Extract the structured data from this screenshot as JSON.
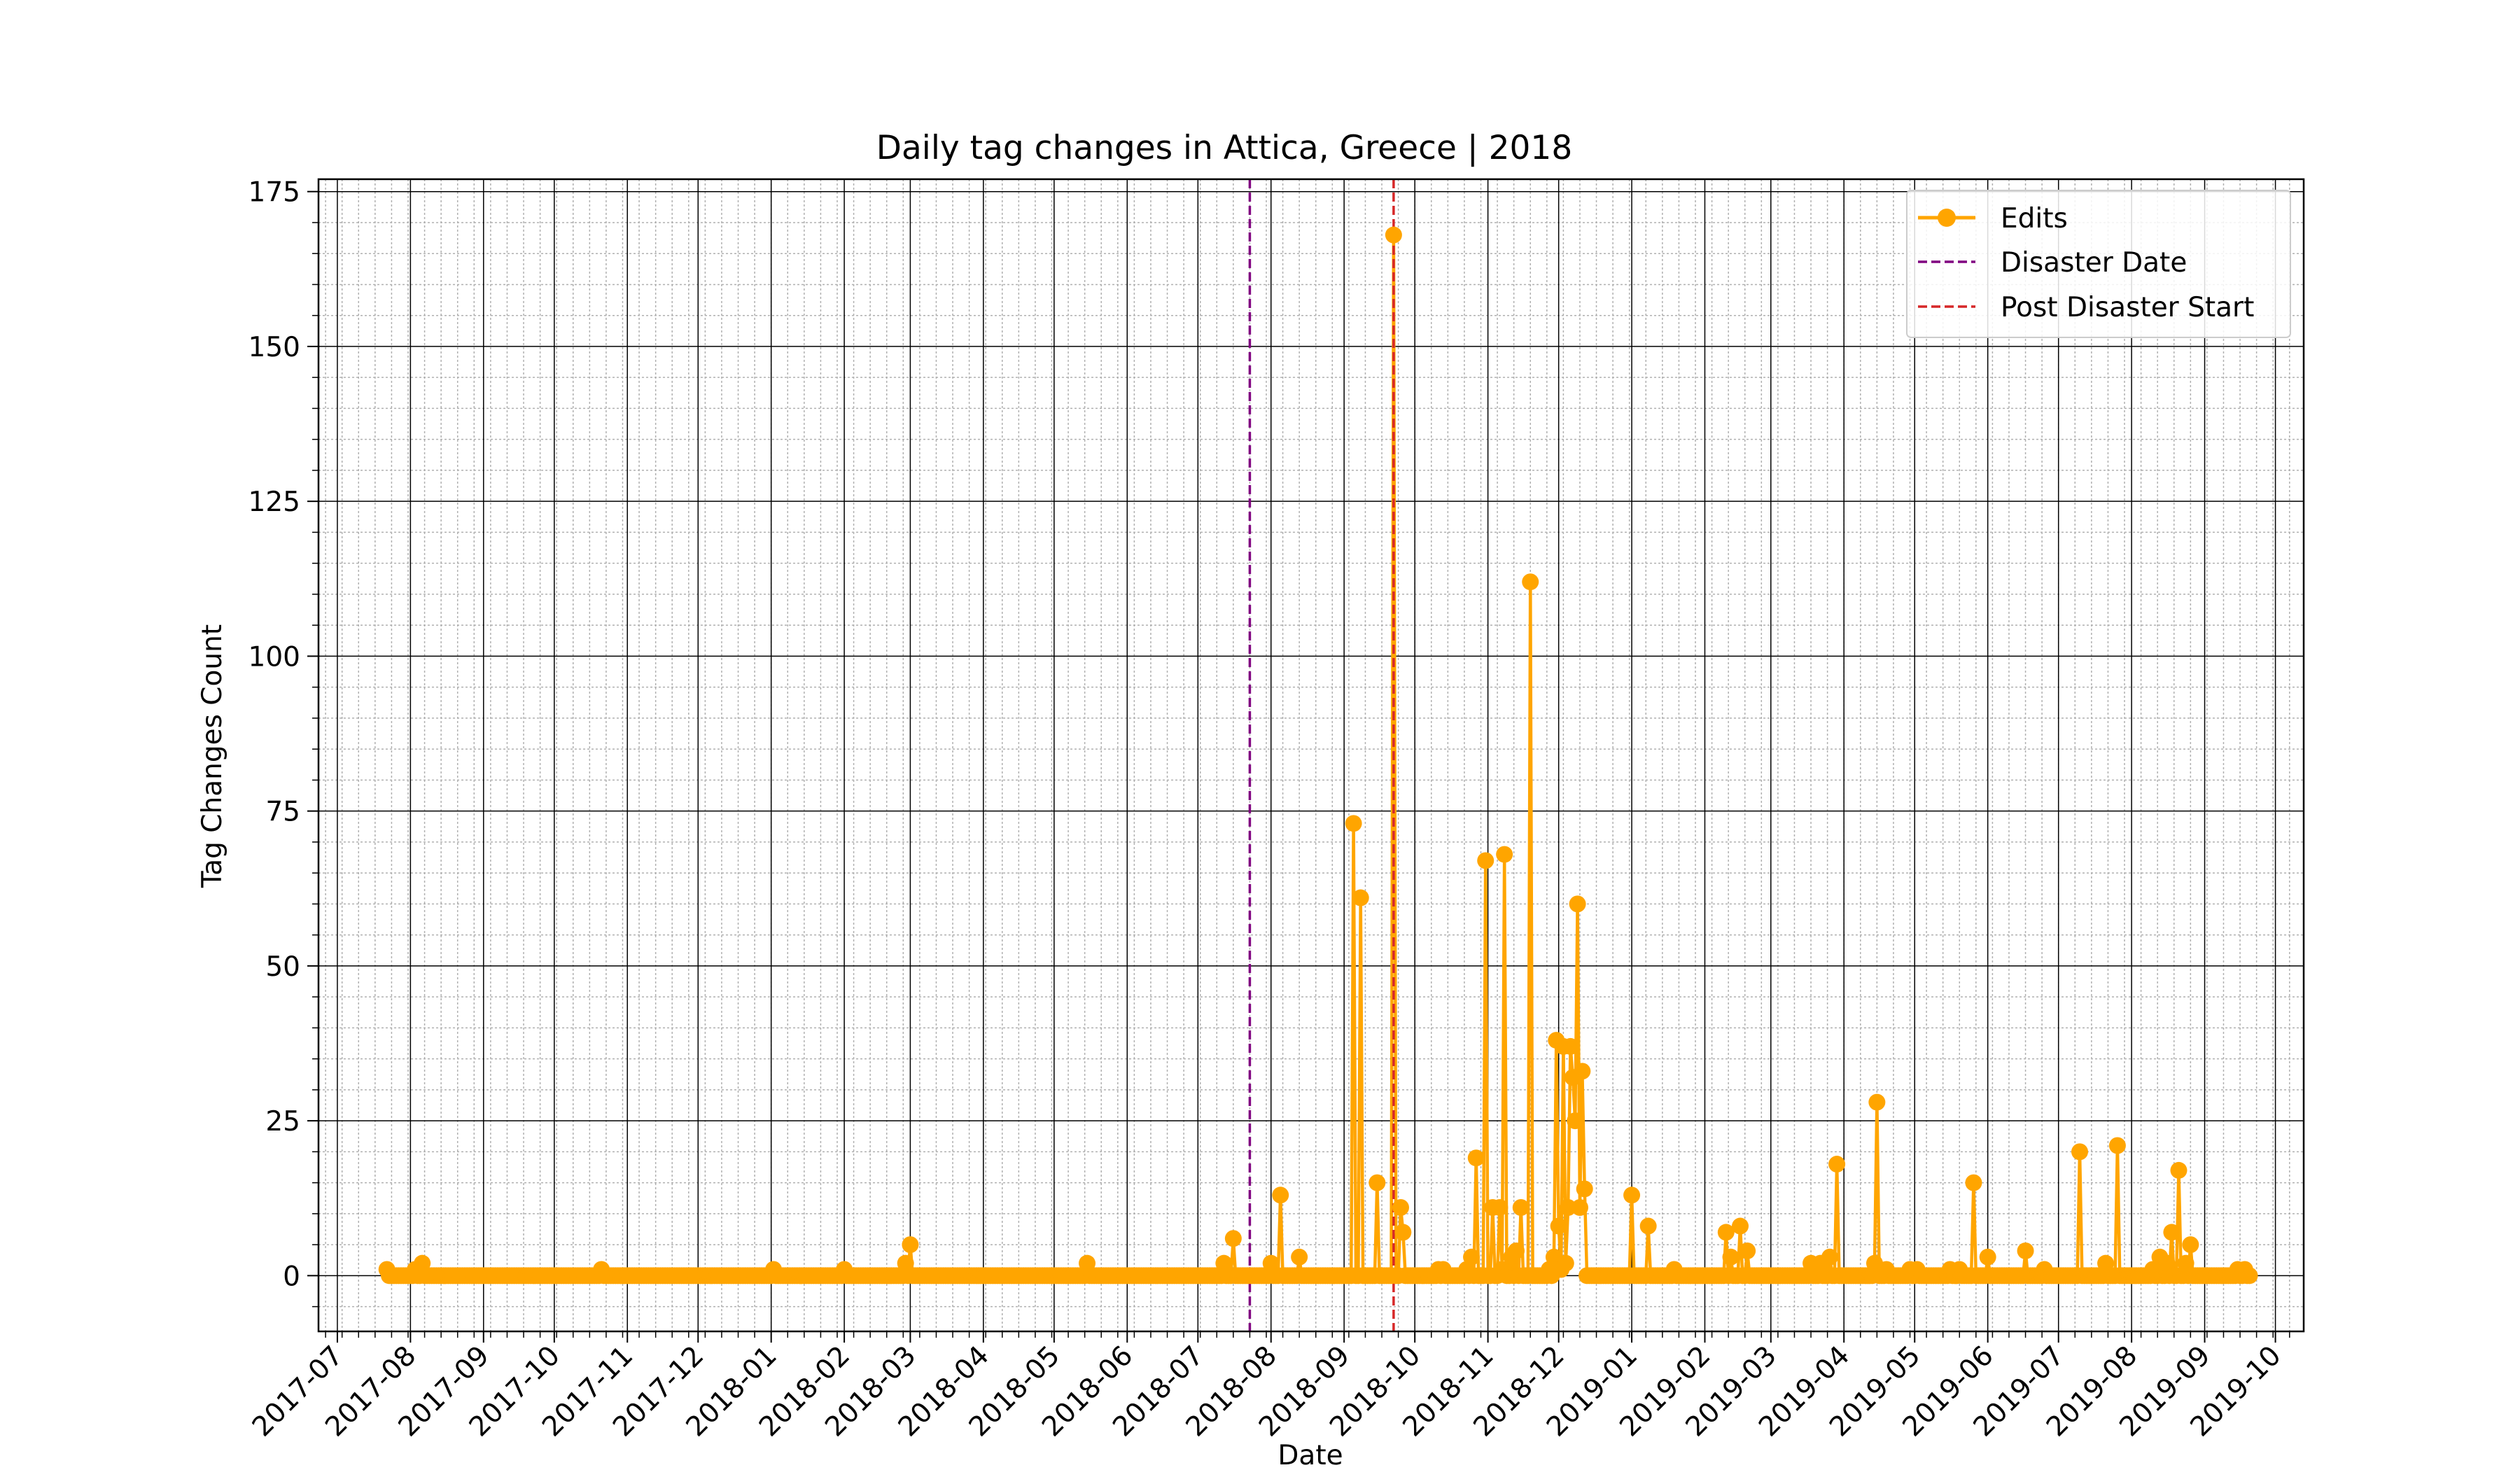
{
  "chart_data": {
    "type": "line",
    "title": "Daily tag changes in Attica, Greece | 2018",
    "xlabel": "Date",
    "ylabel": "Tag Changes Count",
    "xlim": [
      "2017-06-23",
      "2019-10-13"
    ],
    "ylim": [
      -9,
      177
    ],
    "grid": "major and minor",
    "legend_position": "top-right",
    "x_ticks": [
      "2017-07",
      "2017-08",
      "2017-09",
      "2017-10",
      "2017-11",
      "2017-12",
      "2018-01",
      "2018-02",
      "2018-03",
      "2018-04",
      "2018-05",
      "2018-06",
      "2018-07",
      "2018-08",
      "2018-09",
      "2018-10",
      "2018-11",
      "2018-12",
      "2019-01",
      "2019-02",
      "2019-03",
      "2019-04",
      "2019-05",
      "2019-06",
      "2019-07",
      "2019-08",
      "2019-09",
      "2019-10"
    ],
    "y_ticks": [
      0,
      25,
      50,
      75,
      100,
      125,
      150,
      175
    ],
    "series": [
      {
        "name": "Edits",
        "color": "#ffa500",
        "marker": "circle",
        "range": [
          "2017-07-22",
          "2019-09-20"
        ],
        "baseline": 0,
        "points": [
          [
            "2017-07-22",
            1
          ],
          [
            "2017-08-03",
            1
          ],
          [
            "2017-08-06",
            2
          ],
          [
            "2017-10-21",
            1
          ],
          [
            "2018-01-02",
            1
          ],
          [
            "2018-02-01",
            1
          ],
          [
            "2018-02-27",
            2
          ],
          [
            "2018-03-01",
            5
          ],
          [
            "2018-05-15",
            2
          ],
          [
            "2018-07-12",
            2
          ],
          [
            "2018-07-16",
            6
          ],
          [
            "2018-08-01",
            2
          ],
          [
            "2018-08-05",
            13
          ],
          [
            "2018-08-13",
            3
          ],
          [
            "2018-09-05",
            73
          ],
          [
            "2018-09-08",
            61
          ],
          [
            "2018-09-15",
            15
          ],
          [
            "2018-09-22",
            168
          ],
          [
            "2018-09-25",
            11
          ],
          [
            "2018-09-26",
            7
          ],
          [
            "2018-10-11",
            1
          ],
          [
            "2018-10-13",
            1
          ],
          [
            "2018-10-23",
            1
          ],
          [
            "2018-10-25",
            3
          ],
          [
            "2018-10-27",
            19
          ],
          [
            "2018-10-31",
            67
          ],
          [
            "2018-11-03",
            11
          ],
          [
            "2018-11-06",
            11
          ],
          [
            "2018-11-07",
            1
          ],
          [
            "2018-11-08",
            68
          ],
          [
            "2018-11-11",
            3
          ],
          [
            "2018-11-13",
            4
          ],
          [
            "2018-11-15",
            11
          ],
          [
            "2018-11-19",
            112
          ],
          [
            "2018-11-27",
            1
          ],
          [
            "2018-11-29",
            3
          ],
          [
            "2018-11-30",
            38
          ],
          [
            "2018-12-01",
            8
          ],
          [
            "2018-12-02",
            1
          ],
          [
            "2018-12-03",
            37
          ],
          [
            "2018-12-04",
            2
          ],
          [
            "2018-12-05",
            11
          ],
          [
            "2018-12-06",
            37
          ],
          [
            "2018-12-07",
            32
          ],
          [
            "2018-12-08",
            25
          ],
          [
            "2018-12-09",
            60
          ],
          [
            "2018-12-10",
            11
          ],
          [
            "2018-12-11",
            33
          ],
          [
            "2018-12-12",
            14
          ],
          [
            "2019-01-01",
            13
          ],
          [
            "2019-01-08",
            8
          ],
          [
            "2019-01-19",
            1
          ],
          [
            "2019-02-10",
            7
          ],
          [
            "2019-02-12",
            3
          ],
          [
            "2019-02-16",
            8
          ],
          [
            "2019-02-19",
            4
          ],
          [
            "2019-03-18",
            2
          ],
          [
            "2019-03-22",
            2
          ],
          [
            "2019-03-26",
            3
          ],
          [
            "2019-03-29",
            18
          ],
          [
            "2019-04-14",
            2
          ],
          [
            "2019-04-15",
            28
          ],
          [
            "2019-04-19",
            1
          ],
          [
            "2019-04-29",
            1
          ],
          [
            "2019-05-02",
            1
          ],
          [
            "2019-05-16",
            1
          ],
          [
            "2019-05-20",
            1
          ],
          [
            "2019-05-26",
            15
          ],
          [
            "2019-06-01",
            3
          ],
          [
            "2019-06-17",
            4
          ],
          [
            "2019-06-25",
            1
          ],
          [
            "2019-07-10",
            20
          ],
          [
            "2019-07-21",
            2
          ],
          [
            "2019-07-26",
            21
          ],
          [
            "2019-08-10",
            1
          ],
          [
            "2019-08-13",
            3
          ],
          [
            "2019-08-16",
            2
          ],
          [
            "2019-08-18",
            7
          ],
          [
            "2019-08-21",
            17
          ],
          [
            "2019-08-24",
            2
          ],
          [
            "2019-08-26",
            5
          ],
          [
            "2019-09-15",
            1
          ],
          [
            "2019-09-18",
            1
          ]
        ]
      },
      {
        "name": "Disaster Date",
        "color": "#800080",
        "linestyle": "dashed",
        "x": "2018-07-23"
      },
      {
        "name": "Post Disaster Start",
        "color": "#d62728",
        "linestyle": "dashed",
        "x": "2018-09-22"
      }
    ]
  }
}
